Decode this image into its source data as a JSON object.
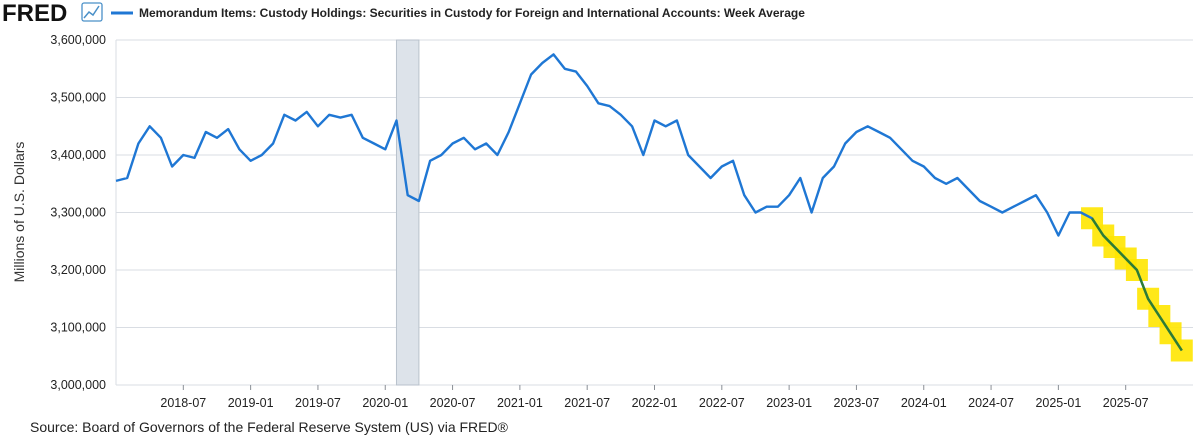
{
  "branding": {
    "logo_text": "FRED",
    "logo_icon": "line-chart-icon"
  },
  "chart_data": {
    "type": "line",
    "title": "",
    "xlabel": "",
    "ylabel": "Millions of U.S. Dollars",
    "ylim": [
      3000000,
      3600000
    ],
    "xlim": [
      "2018-01-01",
      "2025-12-31"
    ],
    "y_ticks": [
      3000000,
      3100000,
      3200000,
      3300000,
      3400000,
      3500000,
      3600000
    ],
    "y_tick_labels": [
      "3,000,000",
      "3,100,000",
      "3,200,000",
      "3,300,000",
      "3,400,000",
      "3,500,000",
      "3,600,000"
    ],
    "x_ticks": [
      "2018-07",
      "2019-01",
      "2019-07",
      "2020-01",
      "2020-07",
      "2021-01",
      "2021-07",
      "2022-01",
      "2022-07",
      "2023-01",
      "2023-07",
      "2024-01",
      "2024-07",
      "2025-01",
      "2025-07"
    ],
    "grid": true,
    "legend_position": "top",
    "recession": {
      "start": "2020-02",
      "end": "2020-04"
    },
    "colors": {
      "series": "#1f77d4",
      "highlight_line": "#2e7d32",
      "highlight_marker": "#ffe600",
      "recession": "#dde3ea",
      "grid": "#d9dde3"
    },
    "series": [
      {
        "name": "Memorandum Items: Custody Holdings: Securities in Custody for Foreign and International Accounts: Week Average",
        "x": [
          "2018-01",
          "2018-02",
          "2018-03",
          "2018-04",
          "2018-05",
          "2018-06",
          "2018-07",
          "2018-08",
          "2018-09",
          "2018-10",
          "2018-11",
          "2018-12",
          "2019-01",
          "2019-02",
          "2019-03",
          "2019-04",
          "2019-05",
          "2019-06",
          "2019-07",
          "2019-08",
          "2019-09",
          "2019-10",
          "2019-11",
          "2019-12",
          "2020-01",
          "2020-02",
          "2020-03",
          "2020-04",
          "2020-05",
          "2020-06",
          "2020-07",
          "2020-08",
          "2020-09",
          "2020-10",
          "2020-11",
          "2020-12",
          "2021-01",
          "2021-02",
          "2021-03",
          "2021-04",
          "2021-05",
          "2021-06",
          "2021-07",
          "2021-08",
          "2021-09",
          "2021-10",
          "2021-11",
          "2021-12",
          "2022-01",
          "2022-02",
          "2022-03",
          "2022-04",
          "2022-05",
          "2022-06",
          "2022-07",
          "2022-08",
          "2022-09",
          "2022-10",
          "2022-11",
          "2022-12",
          "2023-01",
          "2023-02",
          "2023-03",
          "2023-04",
          "2023-05",
          "2023-06",
          "2023-07",
          "2023-08",
          "2023-09",
          "2023-10",
          "2023-11",
          "2023-12",
          "2024-01",
          "2024-02",
          "2024-03",
          "2024-04",
          "2024-05",
          "2024-06",
          "2024-07",
          "2024-08",
          "2024-09",
          "2024-10",
          "2024-11",
          "2024-12",
          "2025-01",
          "2025-02",
          "2025-03",
          "2025-04",
          "2025-05",
          "2025-06",
          "2025-07",
          "2025-08",
          "2025-09",
          "2025-10",
          "2025-11",
          "2025-12"
        ],
        "values": [
          3355000,
          3360000,
          3420000,
          3450000,
          3430000,
          3380000,
          3400000,
          3395000,
          3440000,
          3430000,
          3445000,
          3410000,
          3390000,
          3400000,
          3420000,
          3470000,
          3460000,
          3475000,
          3450000,
          3470000,
          3465000,
          3470000,
          3430000,
          3420000,
          3410000,
          3460000,
          3330000,
          3320000,
          3390000,
          3400000,
          3420000,
          3430000,
          3410000,
          3420000,
          3400000,
          3440000,
          3490000,
          3540000,
          3560000,
          3575000,
          3550000,
          3545000,
          3520000,
          3490000,
          3485000,
          3470000,
          3450000,
          3400000,
          3460000,
          3450000,
          3460000,
          3400000,
          3380000,
          3360000,
          3380000,
          3390000,
          3330000,
          3300000,
          3310000,
          3310000,
          3330000,
          3360000,
          3300000,
          3360000,
          3380000,
          3420000,
          3440000,
          3450000,
          3440000,
          3430000,
          3410000,
          3390000,
          3380000,
          3360000,
          3350000,
          3360000,
          3340000,
          3320000,
          3310000,
          3300000,
          3310000,
          3320000,
          3330000,
          3300000,
          3260000,
          3300000,
          3300000,
          3290000,
          3260000,
          3240000,
          3220000,
          3200000,
          3150000,
          3120000,
          3090000,
          3060000
        ]
      }
    ],
    "highlight": {
      "from": "2025-04",
      "to": "2025-12"
    }
  },
  "source": "Source: Board of Governors of the Federal Reserve System (US) via FRED®"
}
